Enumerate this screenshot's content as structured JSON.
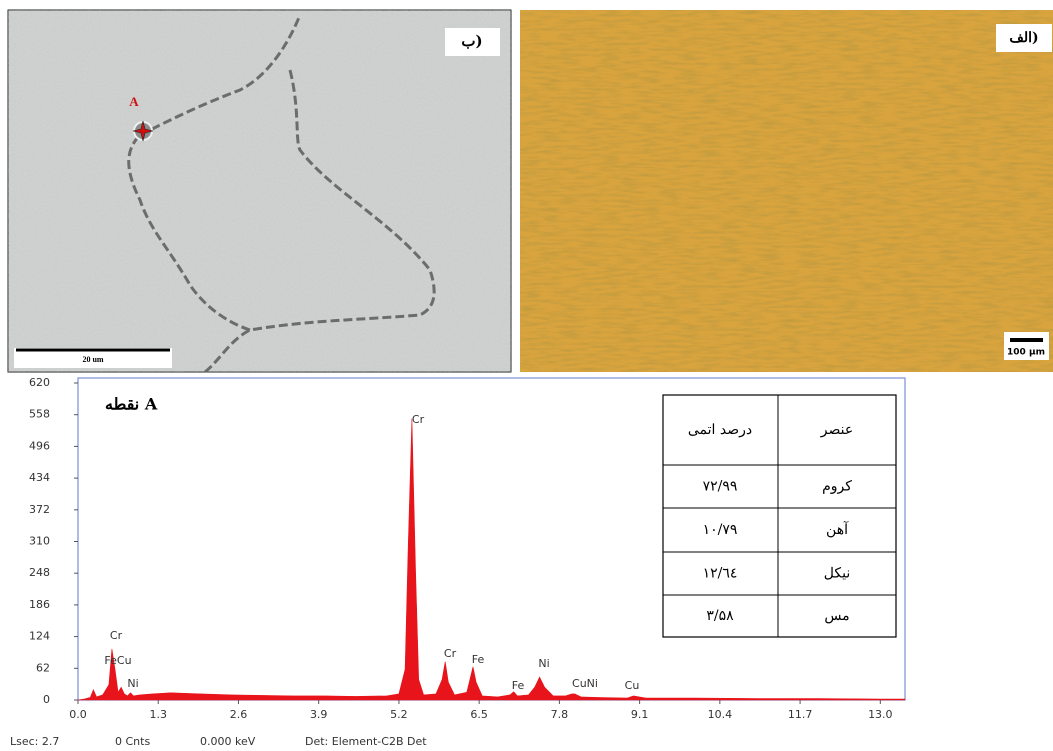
{
  "images": {
    "sem": {
      "label": "ب)",
      "point": "A",
      "scale": "20 um"
    },
    "optical": {
      "label": "الف)",
      "scale": "100 µm"
    }
  },
  "chart_data": {
    "type": "area",
    "label": "نقطه A",
    "color": "#e8141b",
    "x": [
      0,
      0.1,
      0.2,
      0.25,
      0.3,
      0.4,
      0.5,
      0.55,
      0.6,
      0.65,
      0.7,
      0.75,
      0.8,
      0.85,
      0.9,
      1.0,
      1.2,
      1.5,
      2.0,
      2.5,
      3.0,
      3.5,
      4.0,
      4.5,
      5.0,
      5.2,
      5.3,
      5.35,
      5.41,
      5.47,
      5.52,
      5.6,
      5.8,
      5.9,
      5.95,
      6.0,
      6.1,
      6.3,
      6.4,
      6.45,
      6.55,
      6.8,
      7.0,
      7.06,
      7.12,
      7.3,
      7.4,
      7.48,
      7.56,
      7.7,
      7.9,
      8.0,
      8.05,
      8.15,
      8.4,
      8.9,
      9.0,
      9.2,
      10.0,
      11.0,
      12.0,
      13.0,
      13.4
    ],
    "values": [
      0,
      2,
      5,
      20,
      6,
      10,
      30,
      100,
      60,
      15,
      25,
      12,
      8,
      14,
      8,
      10,
      12,
      14,
      12,
      10,
      9,
      8,
      8,
      7,
      8,
      12,
      60,
      300,
      550,
      250,
      40,
      10,
      12,
      40,
      75,
      35,
      10,
      15,
      65,
      35,
      8,
      6,
      10,
      16,
      8,
      10,
      25,
      45,
      25,
      8,
      8,
      12,
      12,
      6,
      5,
      4,
      8,
      4,
      4,
      3,
      3,
      2,
      2
    ],
    "annotations": [
      "Cr",
      "FeCu",
      "Ni",
      "Cr",
      "Cr",
      "Fe",
      "Fe",
      "Ni",
      "CuNi",
      "Cu"
    ],
    "xlim": [
      0,
      13.4
    ],
    "xticks": [
      {
        "value": 0,
        "label": "0.0"
      },
      1.3,
      2.6,
      3.9,
      5.2,
      6.5,
      7.8,
      9.1,
      {
        "value": 10.4,
        "label": "10.4"
      },
      {
        "value": 11.7,
        "label": "11.7"
      },
      {
        "value": 13,
        "label": "13.0"
      }
    ],
    "ylim": [
      0,
      620
    ],
    "yticks": [
      0,
      62,
      124,
      186,
      248,
      310,
      372,
      434,
      496,
      558,
      620
    ],
    "footer": [
      "Lsec: 2.7",
      "0 Cnts",
      "0.000 keV",
      "Det: Element-C2B Det"
    ]
  },
  "table": {
    "header": [
      "عنصر",
      "درصد اتمی"
    ],
    "rows": [
      [
        "کروم",
        "۷۲/۹۹"
      ],
      [
        "آهن",
        "۱۰/۷۹"
      ],
      [
        "نیکل",
        "۱۲/٦٤"
      ],
      [
        "مس",
        "۳/۵۸"
      ]
    ]
  }
}
